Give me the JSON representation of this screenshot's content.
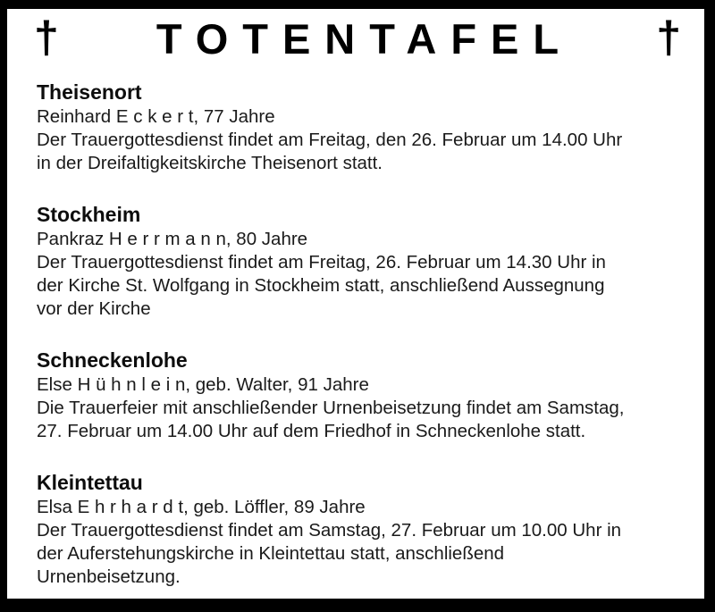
{
  "masthead": {
    "title": "TOTENTAFEL",
    "left_cross": "†",
    "right_cross": "†"
  },
  "sections": [
    {
      "town": "Theisenort",
      "lines": [
        "Reinhard E c k e r t, 77 Jahre",
        "Der Trauergottesdienst findet am Freitag, den 26. Februar um 14.00 Uhr",
        "in der Dreifaltigkeitskirche Theisenort statt."
      ]
    },
    {
      "town": "Stockheim",
      "lines": [
        "Pankraz H e r r m a n n, 80 Jahre",
        "Der Trauergottesdienst findet am Freitag, 26. Februar um 14.30 Uhr in",
        "der Kirche St. Wolfgang in Stockheim statt, anschließend Aussegnung",
        "vor der Kirche"
      ]
    },
    {
      "town": "Schneckenlohe",
      "lines": [
        "Else H ü h n l e i n, geb. Walter, 91 Jahre",
        "Die Trauerfeier mit anschließender Urnenbeisetzung findet am Samstag,",
        "27. Februar um 14.00 Uhr auf dem Friedhof in Schneckenlohe statt."
      ]
    },
    {
      "town": "Kleintettau",
      "lines": [
        "Elsa E h r h a r d t, geb. Löffler, 89 Jahre",
        "Der Trauergottesdienst findet am Samstag, 27. Februar um 10.00 Uhr in",
        "der Auferstehungskirche in Kleintettau statt, anschließend",
        "Urnenbeisetzung."
      ]
    }
  ],
  "colors": {
    "frame": "#000000",
    "background": "#ffffff",
    "text": "#1a1a1a"
  }
}
